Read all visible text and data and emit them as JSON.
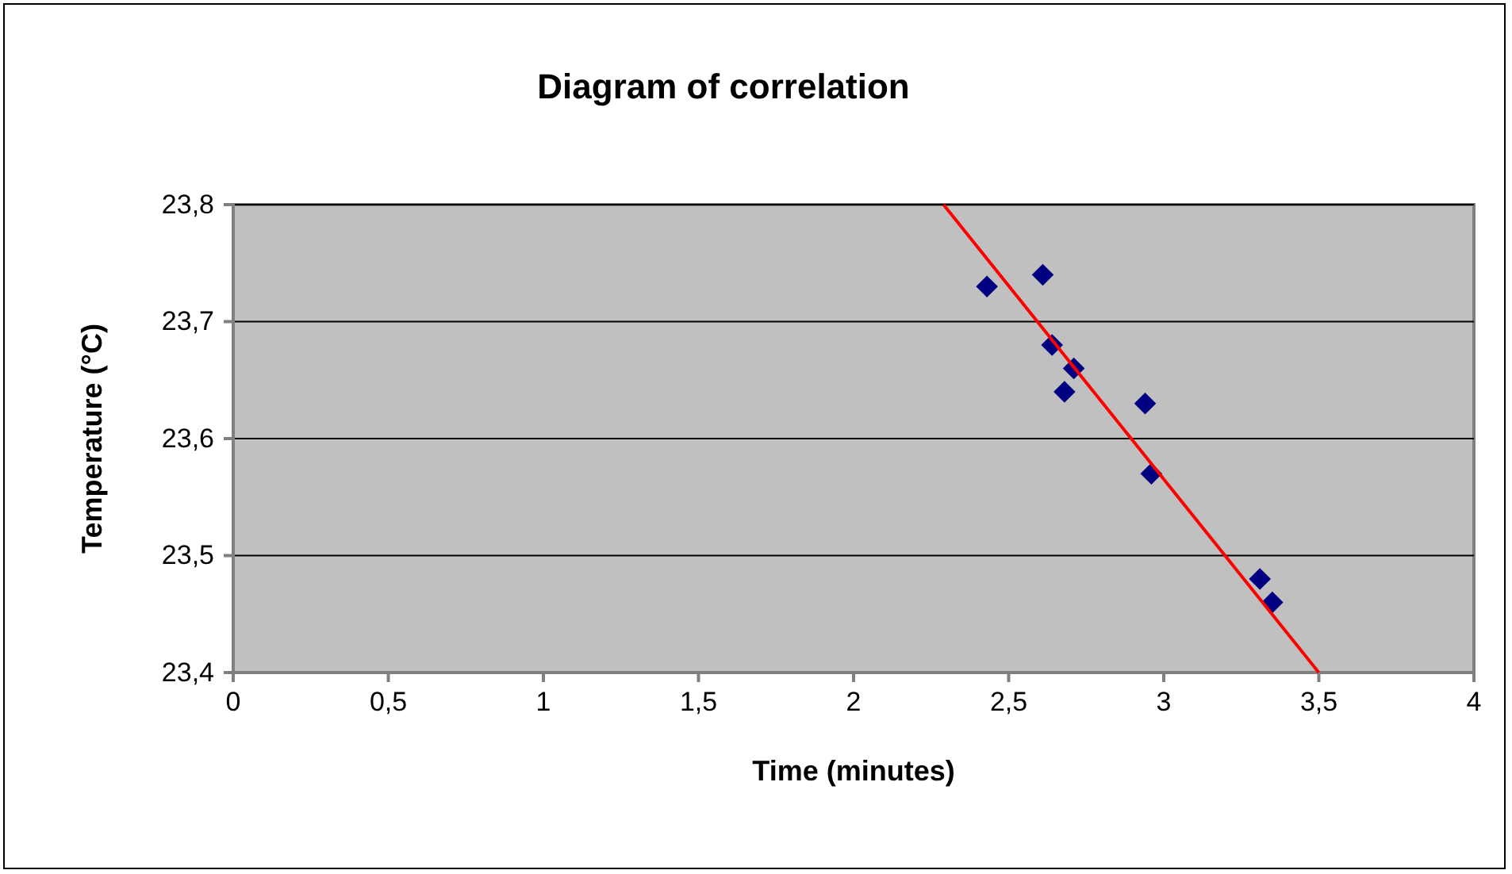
{
  "chart_data": {
    "type": "scatter",
    "title": "Diagram of correlation",
    "xlabel": "Time (minutes)",
    "ylabel": "Temperature (°C)",
    "xlim": [
      0,
      4
    ],
    "xticks": [
      0,
      {
        "value": 0.5,
        "label": "0,5"
      },
      1,
      {
        "value": 1.5,
        "label": "1,5"
      },
      2,
      {
        "value": 2.5,
        "label": "2,5"
      },
      3,
      {
        "value": 3.5,
        "label": "3,5"
      },
      4
    ],
    "ylim": [
      23.4,
      23.8
    ],
    "yticks": [
      {
        "value": 23.4,
        "label": "23,4"
      },
      {
        "value": 23.5,
        "label": "23,5"
      },
      {
        "value": 23.6,
        "label": "23,6"
      },
      {
        "value": 23.7,
        "label": "23,7"
      },
      {
        "value": 23.8,
        "label": "23,8"
      }
    ],
    "grid": "y",
    "series": [
      {
        "color": "#000080",
        "marker": "diamond",
        "x": [
          2.43,
          2.61,
          2.64,
          2.71,
          2.68,
          2.94,
          2.96,
          3.31,
          3.35
        ],
        "values": [
          23.73,
          23.74,
          23.68,
          23.66,
          23.64,
          23.63,
          23.57,
          23.48,
          23.46
        ]
      },
      {
        "type": "line",
        "color": "#ff0000",
        "marker": "none",
        "line_style": "solid",
        "x": [
          2.29,
          3.5
        ],
        "values": [
          23.8,
          23.4
        ]
      }
    ]
  }
}
